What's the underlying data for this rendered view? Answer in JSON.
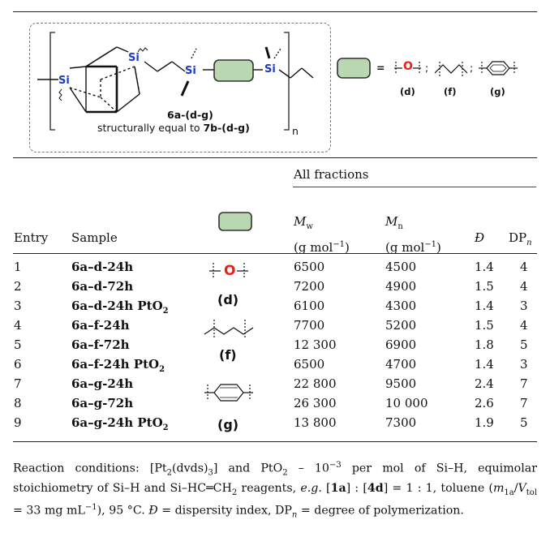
{
  "scheme": {
    "si_label": "Si",
    "n_label": "n",
    "compound_label": "6a-(d-g)",
    "caption_prefix": "structurally equal to ",
    "caption_bold": "7b-(d-g)",
    "equals": "=",
    "separator": ";",
    "legend_labels": [
      "(d)",
      "(f)",
      "(g)"
    ]
  },
  "table": {
    "group_header": "All fractions",
    "columns": {
      "entry": "Entry",
      "sample": "Sample",
      "mw_symbol": "M",
      "mw_sub": "w",
      "mn_symbol": "M",
      "mn_sub": "n",
      "unit": "(g mol",
      "unit_exp": "−1",
      "unit_close": ")",
      "dispersity": "Đ",
      "dp": "DP",
      "dp_sub": "n"
    },
    "rows": [
      {
        "entry": "1",
        "sample": "6a–d-24h",
        "sample_sub": "",
        "mw": "6500",
        "mn": "4500",
        "d": "1.4",
        "dp": "4"
      },
      {
        "entry": "2",
        "sample": "6a–d-72h",
        "sample_sub": "",
        "mw": "7200",
        "mn": "4900",
        "d": "1.5",
        "dp": "4"
      },
      {
        "entry": "3",
        "sample": "6a–d-24h PtO",
        "sample_sub": "2",
        "mw": "6100",
        "mn": "4300",
        "d": "1.4",
        "dp": "3"
      },
      {
        "entry": "4",
        "sample": "6a–f-24h",
        "sample_sub": "",
        "mw": "7700",
        "mn": "5200",
        "d": "1.5",
        "dp": "4"
      },
      {
        "entry": "5",
        "sample": "6a–f-72h",
        "sample_sub": "",
        "mw": "12 300",
        "mn": "6900",
        "d": "1.8",
        "dp": "5"
      },
      {
        "entry": "6",
        "sample": "6a–f-24h PtO",
        "sample_sub": "2",
        "mw": "6500",
        "mn": "4700",
        "d": "1.4",
        "dp": "3"
      },
      {
        "entry": "7",
        "sample": "6a–g-24h",
        "sample_sub": "",
        "mw": "22 800",
        "mn": "9500",
        "d": "2.4",
        "dp": "7"
      },
      {
        "entry": "8",
        "sample": "6a–g-72h",
        "sample_sub": "",
        "mw": "26 300",
        "mn": "10 000",
        "d": "2.6",
        "dp": "7"
      },
      {
        "entry": "9",
        "sample": "6a–g-24h PtO",
        "sample_sub": "2",
        "mw": "13 800",
        "mn": "7300",
        "d": "1.9",
        "dp": "5"
      }
    ],
    "group_labels": [
      "(d)",
      "(f)",
      "(g)"
    ]
  },
  "footnote": {
    "p1": "Reaction conditions: [Pt",
    "p1_sub": "2",
    "p2": "(dvds)",
    "p2_sub": "3",
    "p3": "] and PtO",
    "p3_sub": "2",
    "p4": " – 10",
    "p4_sup": "−3",
    "p5": " per mol of Si–H, equimolar stoichiometry of Si–H and Si–HC═CH",
    "p5_sub": "2",
    "p6": " reagents, ",
    "p6_em": "e.g.",
    "p7": " [",
    "p7_b1": "1a",
    "p8": "] : [",
    "p8_b2": "4d",
    "p9": "] = 1 : 1, toluene (",
    "p9_m": "m",
    "p9_msub": "1a",
    "p10": "/",
    "p10_v": "V",
    "p10_vsub": "tol",
    "p11": " = 33 mg mL",
    "p11_sup": "−1",
    "p12": "), 95 °C. ",
    "p12_d": "Đ",
    "p13": " = dispersity index, DP",
    "p13_sub": "n",
    "p14": " = degree of polymerization."
  },
  "colors": {
    "box_fill": "#b9d7b0",
    "oxygen": "#e8201c",
    "si": "#1a3cc8"
  }
}
